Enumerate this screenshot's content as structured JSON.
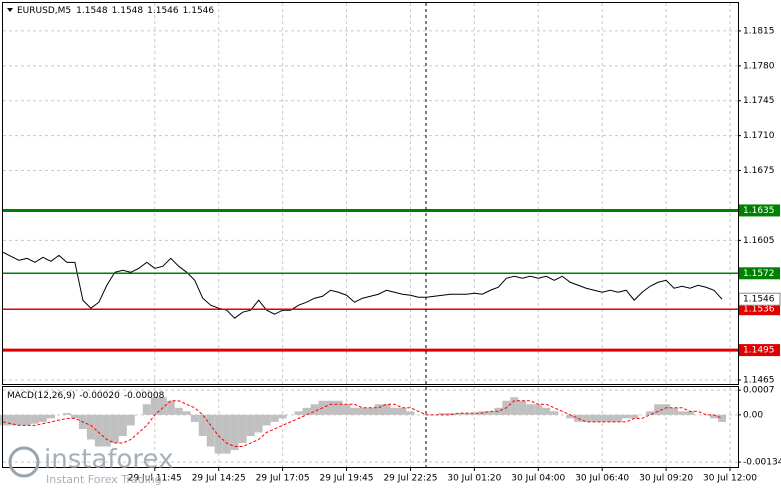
{
  "chart_data": [
    {
      "type": "line",
      "title": "EURUSD,M5",
      "ohlc": [
        1.1548,
        1.1548,
        1.1546,
        1.1546
      ],
      "color": "#000000",
      "grid": true,
      "values": [
        1.1593,
        1.1589,
        1.1585,
        1.1587,
        1.1583,
        1.1588,
        1.1584,
        1.159,
        1.1583,
        1.1583,
        1.1545,
        1.1537,
        1.1543,
        1.156,
        1.1573,
        1.1575,
        1.1573,
        1.1577,
        1.1583,
        1.1577,
        1.1579,
        1.1587,
        1.1579,
        1.1573,
        1.1565,
        1.1547,
        1.154,
        1.1537,
        1.1535,
        1.1527,
        1.1533,
        1.1535,
        1.1545,
        1.1535,
        1.1531,
        1.1535,
        1.1535,
        1.154,
        1.1543,
        1.1547,
        1.1549,
        1.1555,
        1.1553,
        1.155,
        1.1543,
        1.1547,
        1.1549,
        1.1551,
        1.1555,
        1.1553,
        1.1551,
        1.155,
        1.1548,
        1.1548,
        1.1549,
        1.155,
        1.1551,
        1.1551,
        1.1551,
        1.1552,
        1.1551,
        1.1555,
        1.1558,
        1.1567,
        1.1569,
        1.1567,
        1.1569,
        1.1567,
        1.1569,
        1.1565,
        1.1569,
        1.1563,
        1.156,
        1.1557,
        1.1555,
        1.1553,
        1.1555,
        1.1553,
        1.1555,
        1.1545,
        1.1553,
        1.1559,
        1.1563,
        1.1565,
        1.1557,
        1.1559,
        1.1557,
        1.156,
        1.1558,
        1.1555,
        1.1546
      ],
      "xlim": [
        0,
        92
      ],
      "xticks": [
        {
          "value": 19,
          "label": "29 Jul 11:45"
        },
        {
          "value": 27,
          "label": "29 Jul 14:25"
        },
        {
          "value": 35,
          "label": "29 Jul 17:05"
        },
        {
          "value": 43,
          "label": "29 Jul 19:45"
        },
        {
          "value": 51,
          "label": "29 Jul 22:25"
        },
        {
          "value": 59,
          "label": "30 Jul 01:20"
        },
        {
          "value": 67,
          "label": "30 Jul 04:00"
        },
        {
          "value": 75,
          "label": "30 Jul 06:40"
        },
        {
          "value": 83,
          "label": "30 Jul 09:20"
        },
        {
          "value": 91,
          "label": "30 Jul 12:00"
        }
      ],
      "ylim": [
        1.1461,
        1.1843
      ],
      "yticks": [
        1.1815,
        {
          "value": 1.178,
          "label": "1.1780"
        },
        1.1745,
        {
          "value": 1.171,
          "label": "1.1710"
        },
        1.1675,
        1.1605,
        1.1465
      ],
      "levels": [
        {
          "value": 1.1635,
          "color": "#008000",
          "style": "thick"
        },
        {
          "value": 1.1572,
          "color": "#008000",
          "style": "thin"
        },
        {
          "value": 1.1536,
          "color": "#e00000",
          "style": "thin"
        },
        {
          "value": 1.1495,
          "color": "#e00000",
          "style": "thick"
        }
      ],
      "last_price": 1.1546
    },
    {
      "type": "macd",
      "title": "MACD(12,26,9)",
      "readout": [
        {
          "value": -0.0002,
          "label": "-0.00020"
        },
        -8e-05
      ],
      "grid": true,
      "xlim": [
        0,
        92
      ],
      "ylim": [
        -0.00148,
        0.00079
      ],
      "yticks": [
        0.0007,
        {
          "value": 0,
          "label": "0.00"
        },
        -0.00134
      ],
      "series": [
        {
          "name": "histogram",
          "color": "#c0c0c0",
          "values": [
            -0.0003,
            -0.0003,
            -0.0003,
            -0.0003,
            -0.00025,
            -0.0002,
            -0.0001,
            0,
            5e-05,
            -0.0001,
            -0.0004,
            -0.0007,
            -0.0009,
            -0.0009,
            -0.0008,
            -0.0006,
            -0.0003,
            0,
            0.0003,
            0.0005,
            0.0005,
            0.0004,
            0.0002,
            0.0001,
            -0.0002,
            -0.0006,
            -0.0009,
            -0.0011,
            -0.0011,
            -0.001,
            -0.0008,
            -0.0006,
            -0.0005,
            -0.0003,
            -0.0002,
            -0.0001,
            0,
            0.0001,
            0.0002,
            0.0003,
            0.0004,
            0.0004,
            0.0004,
            0.0003,
            0.0002,
            0.0002,
            0.0002,
            0.0003,
            0.0003,
            0.0002,
            0.0002,
            0.0001,
            0,
            0,
            0,
            5e-05,
            5e-05,
            5e-05,
            5e-05,
            5e-05,
            0.0001,
            0.0001,
            0.0002,
            0.0004,
            0.0005,
            0.0004,
            0.0003,
            0.0003,
            0.0002,
            0.0001,
            0,
            -0.0001,
            -0.0002,
            -0.0002,
            -0.0002,
            -0.0002,
            -0.0002,
            -0.0002,
            -0.0001,
            -0.0001,
            0,
            0.0001,
            0.0003,
            0.0003,
            0.0002,
            0.0001,
            0.0001,
            0,
            0,
            -0.0001,
            -0.0002
          ]
        },
        {
          "name": "signal",
          "color": "#ff0000",
          "values": [
            -0.0002,
            -0.00025,
            -0.0003,
            -0.0003,
            -0.0003,
            -0.00025,
            -0.0002,
            -0.00015,
            -0.0001,
            -0.0001,
            -0.0002,
            -0.0003,
            -0.0005,
            -0.0007,
            -0.0008,
            -0.0008,
            -0.0007,
            -0.0005,
            -0.0003,
            0,
            0.0002,
            0.0004,
            0.0004,
            0.0003,
            0.0002,
            0,
            -0.0003,
            -0.0006,
            -0.0008,
            -0.0009,
            -0.0009,
            -0.0008,
            -0.0007,
            -0.0005,
            -0.0004,
            -0.0003,
            -0.0002,
            -0.0001,
            0,
            0.0001,
            0.0002,
            0.0003,
            0.0003,
            0.0003,
            0.0003,
            0.0002,
            0.0002,
            0.0002,
            0.0003,
            0.0003,
            0.0002,
            0.0002,
            0.0001,
            0,
            0,
            0,
            0,
            5e-05,
            5e-05,
            5e-05,
            5e-05,
            0.0001,
            0.0001,
            0.0002,
            0.0004,
            0.0004,
            0.0004,
            0.0003,
            0.0003,
            0.0002,
            0.0001,
            0,
            -0.0001,
            -0.0002,
            -0.0002,
            -0.0002,
            -0.0002,
            -0.0002,
            -0.0002,
            -0.0001,
            -0.0001,
            0,
            0.0001,
            0.0002,
            0.0002,
            0.0002,
            0.0001,
            0.0001,
            0,
            0,
            -0.0001
          ]
        }
      ]
    }
  ],
  "watermark": {
    "brand": "instaforex",
    "tagline": "Instant Forex Trading"
  }
}
